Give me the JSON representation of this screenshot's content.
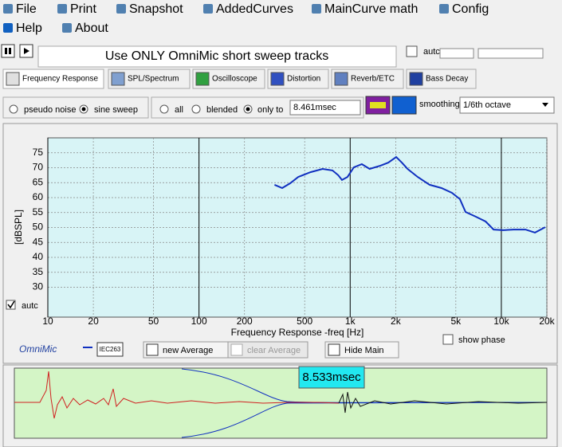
{
  "menu": [
    "File",
    "Print",
    "Snapshot",
    "AddedCurves",
    "MainCurve math",
    "Config",
    "Help",
    "About"
  ],
  "title_box": "Use ONLY OmniMic short sweep tracks",
  "auto_top": "autc",
  "tabs": [
    "Frequency Response",
    "SPL/Spectrum",
    "Oscilloscope",
    "Distortion",
    "Reverb/ETC",
    "Bass Decay"
  ],
  "signal_options": [
    "pseudo noise",
    "sine sweep"
  ],
  "window_options": [
    "all",
    "blended",
    "only to"
  ],
  "window_value": "8.461msec",
  "smoothing_label": "smoothing",
  "smoothing_value": "1/6th octave",
  "chart_data": {
    "type": "line",
    "x_label": "Frequency Response -freq [Hz]",
    "y_label": "[dBSPL]",
    "x": [
      316,
      355,
      401,
      453,
      546,
      656,
      764,
      834,
      883,
      960,
      1057,
      1194,
      1345,
      1584,
      1787,
      2016,
      2196,
      2397,
      2797,
      3353,
      4019,
      4708,
      5317,
      5794,
      6790,
      7872,
      8887,
      10270,
      12040,
      14450,
      16700,
      19500
    ],
    "series": [
      {
        "color": "#1030c0",
        "values": [
          64.3,
          63.2,
          64.8,
          66.9,
          68.5,
          69.6,
          69.1,
          67.5,
          65.9,
          66.9,
          70.1,
          71.2,
          69.6,
          70.7,
          71.7,
          73.6,
          71.7,
          69.6,
          66.9,
          64.3,
          63.2,
          61.6,
          59.5,
          55.2,
          53.6,
          52.0,
          49.3,
          49.1,
          49.3,
          49.3,
          48.3,
          50.1
        ]
      }
    ],
    "xlim": [
      10,
      20000
    ],
    "ylim": [
      20,
      80
    ],
    "log_x": true,
    "grid": true,
    "xticks": [
      10,
      20,
      50,
      100,
      200,
      500,
      {
        "value": 1000,
        "label": "1k"
      },
      {
        "value": 2000,
        "label": "2k"
      },
      {
        "value": 5000,
        "label": "5k"
      },
      {
        "value": 10000,
        "label": "10k"
      },
      {
        "value": 20000,
        "label": "20k"
      }
    ],
    "yticks": [
      30,
      35,
      40,
      45,
      50,
      55,
      60,
      65,
      70,
      75
    ]
  },
  "auto_chart": "autc",
  "brand": "OmniMic",
  "iec": "IEC263",
  "buttons": [
    "new Average",
    "clear Average",
    "Hide Main"
  ],
  "show_phase": "show phase",
  "time_readout": "8.533msec"
}
